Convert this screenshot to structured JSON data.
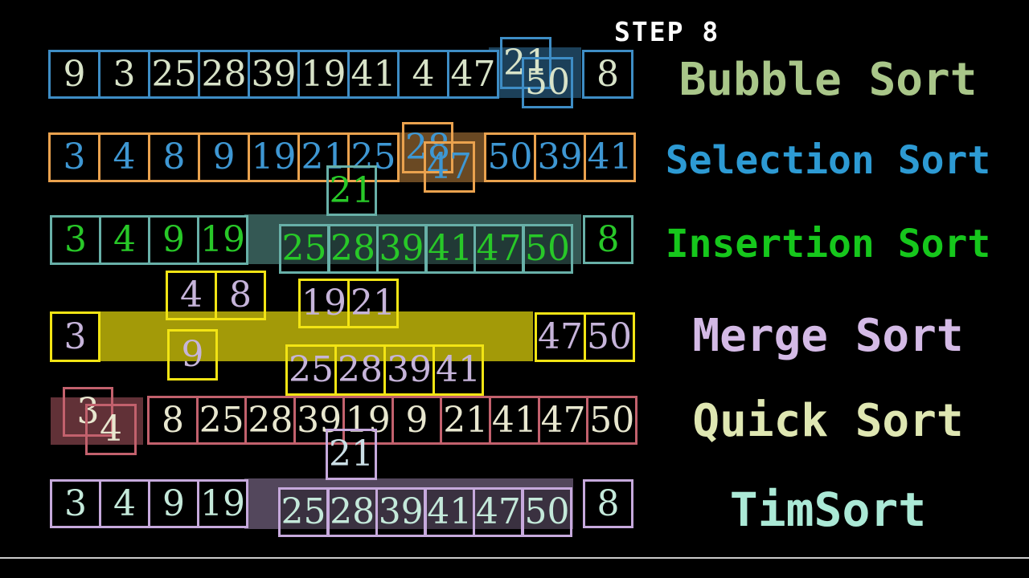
{
  "step_label": "STEP 8",
  "progress_line_color": "#cbcbcb",
  "rows": [
    {
      "id": "bubble",
      "label": "Bubble Sort",
      "colors": {
        "border": "#3e8dc5",
        "text": "#d8e3c8",
        "band": "rgba(62,141,197,0.45)",
        "label": "#a9c689"
      },
      "cells": {
        "main": [
          "9",
          "3",
          "25",
          "28",
          "39",
          "19",
          "41",
          "4",
          "47"
        ],
        "swap": [
          "21",
          "50"
        ],
        "tail": "8"
      }
    },
    {
      "id": "selection",
      "label": "Selection Sort",
      "colors": {
        "border": "#eaa24e",
        "text": "#3e97d3",
        "band": "rgba(234,162,78,0.45)",
        "label": "#2d9ad3"
      },
      "cells": {
        "main": [
          "3",
          "4",
          "8",
          "9",
          "19",
          "21",
          "25"
        ],
        "swap": [
          "28",
          "47"
        ],
        "after": [
          "50",
          "39",
          "41"
        ],
        "mover": "21"
      },
      "mover_colors": {
        "border": "#68b0a8",
        "text": "#28c828"
      }
    },
    {
      "id": "insertion",
      "label": "Insertion Sort",
      "colors": {
        "border": "#68b0a8",
        "text": "#28c828",
        "band": "rgba(104,176,168,0.5)",
        "label": "#16c71c"
      },
      "cells": {
        "main": [
          "3",
          "4",
          "9",
          "19"
        ],
        "group": [
          "25",
          "28",
          "39",
          "41",
          "47",
          "50"
        ],
        "tail": "8"
      }
    },
    {
      "id": "merge",
      "label": "Merge Sort",
      "colors": {
        "border": "#f2e414",
        "text": "#c6b4da",
        "band": "#a39a08",
        "label": "#d4bae6"
      },
      "cells": {
        "left": "3",
        "pair_top": [
          "4",
          "8"
        ],
        "pair_mid": [
          "19",
          "21"
        ],
        "single": "9",
        "group": [
          "25",
          "28",
          "39",
          "41"
        ],
        "right": [
          "47",
          "50"
        ]
      }
    },
    {
      "id": "quick",
      "label": "Quick Sort",
      "colors": {
        "border": "#c2616d",
        "text": "#e8e7cf",
        "band": "rgba(194,97,109,0.5)",
        "label": "#dfe7b2"
      },
      "cells": {
        "swap": [
          "3",
          "4"
        ],
        "main": [
          "8",
          "25",
          "28",
          "39",
          "19",
          "9",
          "21",
          "41",
          "47",
          "50"
        ],
        "mover": "21"
      },
      "mover_colors": {
        "border": "#c6a9dc",
        "text": "#cbdfe6"
      }
    },
    {
      "id": "tim",
      "label": "TimSort",
      "colors": {
        "border": "#c6a9dc",
        "text": "#c4e9da",
        "band": "rgba(198,169,220,0.42)",
        "label": "#abe9d6"
      },
      "cells": {
        "main": [
          "3",
          "4",
          "9",
          "19"
        ],
        "group": [
          "25",
          "28",
          "39",
          "41",
          "47",
          "50"
        ],
        "tail": "8"
      }
    }
  ]
}
